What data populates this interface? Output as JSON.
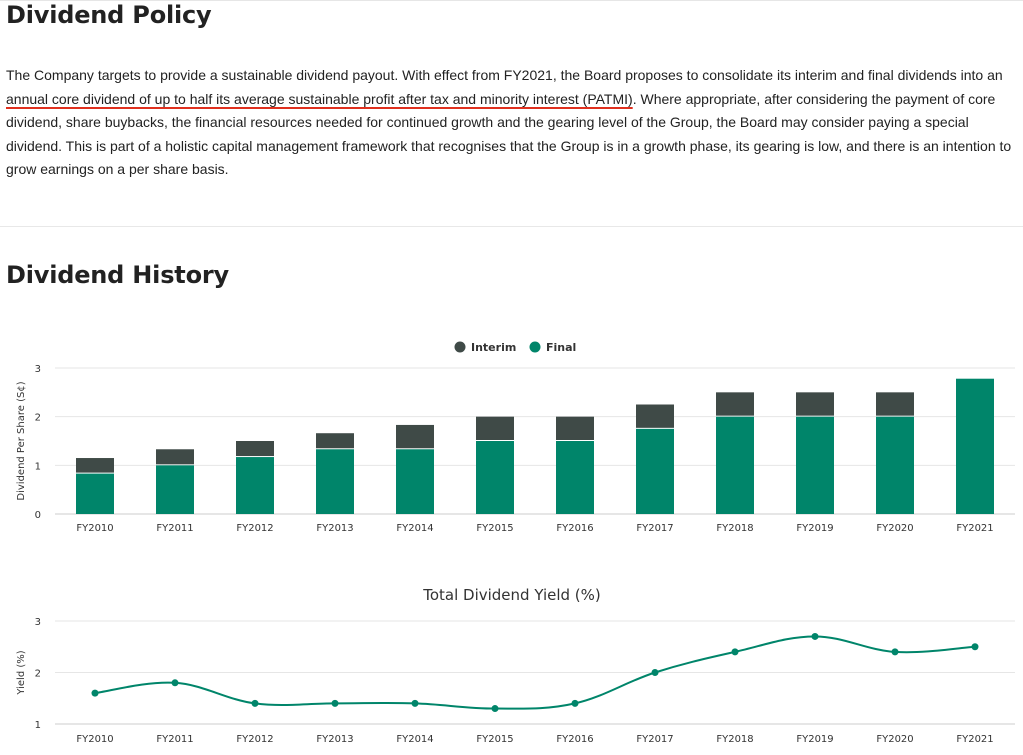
{
  "policy": {
    "title": "Dividend Policy",
    "text_before": "The Company targets to provide a sustainable dividend payout. With effect from FY2021, the Board proposes to consolidate its interim and final dividends into an ",
    "text_highlight": "annual core dividend of up to half its average sustainable profit after tax and minority interest (PATMI)",
    "text_after": ". Where appropriate, after considering the payment of core dividend, share buybacks, the financial resources needed for continued growth and the gearing level of the Group, the Board may consider paying a special dividend. This is part of a holistic capital management framework that recognises that the Group is in a growth phase, its gearing is low, and there is an intention to grow earnings on a per share basis.",
    "highlight_color": "#e0301e"
  },
  "history": {
    "title": "Dividend History"
  },
  "colors": {
    "interim": "#3f4a47",
    "final": "#00856a",
    "grid": "#e6e6e6",
    "axis": "#cccccc"
  },
  "chart_data": [
    {
      "type": "bar",
      "stacked": true,
      "title": "",
      "xlabel": "",
      "ylabel": "Dividend Per Share (S¢)",
      "ylim": [
        0,
        3
      ],
      "yticks": [
        0,
        1,
        2,
        3
      ],
      "legend_position": "top-center",
      "categories": [
        "FY2010",
        "FY2011",
        "FY2012",
        "FY2013",
        "FY2014",
        "FY2015",
        "FY2016",
        "FY2017",
        "FY2018",
        "FY2019",
        "FY2020",
        "FY2021"
      ],
      "series": [
        {
          "name": "Final",
          "values": [
            0.83,
            1.0,
            1.17,
            1.33,
            1.33,
            1.5,
            1.5,
            1.75,
            2.0,
            2.0,
            2.0,
            2.78
          ]
        },
        {
          "name": "Interim",
          "values": [
            0.32,
            0.33,
            0.33,
            0.33,
            0.5,
            0.5,
            0.5,
            0.5,
            0.5,
            0.5,
            0.5,
            0
          ]
        }
      ]
    },
    {
      "type": "line",
      "smooth": true,
      "title": "Total Dividend Yield (%)",
      "xlabel": "",
      "ylabel": "Yield (%)",
      "ylim": [
        1,
        3
      ],
      "yticks": [
        1,
        2,
        3
      ],
      "categories": [
        "FY2010",
        "FY2011",
        "FY2012",
        "FY2013",
        "FY2014",
        "FY2015",
        "FY2016",
        "FY2017",
        "FY2018",
        "FY2019",
        "FY2020",
        "FY2021"
      ],
      "series": [
        {
          "name": "",
          "values": [
            1.6,
            1.8,
            1.4,
            1.4,
            1.4,
            1.3,
            1.4,
            2.0,
            2.4,
            2.7,
            2.4,
            2.5
          ]
        }
      ]
    }
  ]
}
